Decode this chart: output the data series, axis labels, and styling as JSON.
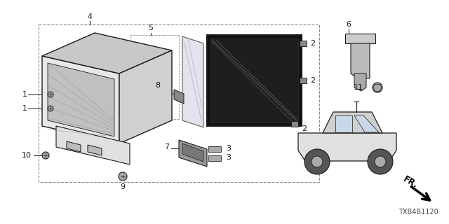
{
  "part_code": "TXB4B1120",
  "bg_color": "#ffffff",
  "line_color": "#1a1a1a",
  "fig_width": 6.4,
  "fig_height": 3.2,
  "dpi": 100
}
